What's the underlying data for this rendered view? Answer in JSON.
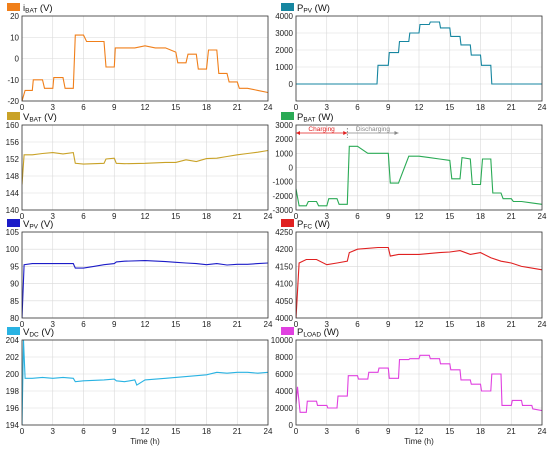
{
  "chart_data": [
    {
      "type": "line",
      "label_main": "i",
      "label_sub": "BAT",
      "unit": "(V)",
      "color": "#f07f1a",
      "ylim": [
        -20,
        20
      ],
      "yticks": [
        -20,
        -10,
        0,
        10,
        20
      ],
      "xlim": [
        0,
        24
      ],
      "xticks": [
        0,
        3,
        6,
        9,
        12,
        15,
        18,
        21,
        24
      ],
      "xlabel": "",
      "grid": true,
      "x": [
        0,
        0.3,
        1,
        1.1,
        2,
        2.2,
        3,
        3.1,
        4,
        4.2,
        5,
        5.2,
        6,
        6.3,
        7,
        8,
        8.2,
        9,
        9.1,
        10,
        11,
        12,
        13,
        14,
        15,
        15.2,
        16,
        16.2,
        17,
        17.2,
        18,
        18.2,
        19,
        19.2,
        20,
        20.2,
        21,
        21.2,
        22,
        23,
        24
      ],
      "y": [
        -20,
        -15,
        -15,
        -10,
        -10,
        -14,
        -14,
        -9,
        -9,
        -14,
        -14,
        11,
        11,
        8,
        8,
        8,
        -4,
        -4,
        5,
        5,
        5,
        6,
        5,
        5,
        3,
        -2,
        -2,
        2,
        2,
        -5,
        -5,
        4,
        4,
        -7,
        -7,
        -11,
        -11,
        -14,
        -14,
        -15,
        -16
      ]
    },
    {
      "type": "line",
      "label_main": "P",
      "label_sub": "PV",
      "unit": "(W)",
      "color": "#1686a0",
      "ylim": [
        -1000,
        4000
      ],
      "yticks": [
        0,
        1000,
        2000,
        3000,
        4000
      ],
      "xlim": [
        0,
        24
      ],
      "xticks": [
        0,
        3,
        6,
        9,
        12,
        15,
        18,
        21,
        24
      ],
      "xlabel": "",
      "grid": true,
      "x": [
        0,
        6,
        7.9,
        8,
        9,
        9.1,
        10,
        10.1,
        11,
        11.1,
        12,
        12.1,
        13,
        13.1,
        14,
        14.1,
        15,
        15.1,
        16,
        16.1,
        17,
        17.1,
        18,
        18.1,
        19,
        19.1,
        24
      ],
      "y": [
        0,
        0,
        0,
        1100,
        1100,
        1850,
        1850,
        2500,
        2500,
        3000,
        3000,
        3500,
        3500,
        3650,
        3650,
        3300,
        3300,
        2800,
        2800,
        2300,
        2300,
        1700,
        1700,
        1100,
        1100,
        0,
        0
      ]
    },
    {
      "type": "line",
      "label_main": "V",
      "label_sub": "BAT",
      "unit": "(V)",
      "color": "#c9a227",
      "ylim": [
        140,
        160
      ],
      "yticks": [
        140,
        144,
        148,
        152,
        156,
        160
      ],
      "xlim": [
        0,
        24
      ],
      "xticks": [
        0,
        3,
        6,
        9,
        12,
        15,
        18,
        21,
        24
      ],
      "xlabel": "",
      "grid": true,
      "x": [
        0,
        0.2,
        1,
        2,
        3,
        4,
        5,
        5.2,
        6,
        8,
        8.2,
        9,
        9.2,
        10,
        12,
        14,
        15,
        16,
        17,
        18,
        19,
        20,
        21,
        22,
        23,
        24
      ],
      "y": [
        146,
        153,
        153,
        153.3,
        153.5,
        153.2,
        153.5,
        151,
        150.8,
        151,
        152,
        152.2,
        151,
        150.9,
        151,
        151.2,
        151.2,
        151.8,
        151.4,
        152.1,
        152.2,
        152.6,
        153,
        153.3,
        153.6,
        154
      ]
    },
    {
      "type": "line",
      "label_main": "P",
      "label_sub": "BAT",
      "unit": "(W)",
      "color": "#2aaa55",
      "ylim": [
        -3000,
        3000
      ],
      "yticks": [
        -3000,
        -2000,
        -1000,
        0,
        1000,
        2000,
        3000
      ],
      "xlim": [
        0,
        24
      ],
      "xticks": [
        0,
        3,
        6,
        9,
        12,
        15,
        18,
        21,
        24
      ],
      "xlabel": "",
      "grid": true,
      "x": [
        0,
        0.3,
        1,
        1.2,
        2,
        2.2,
        3,
        3.2,
        4,
        4.2,
        5,
        5.2,
        6,
        7,
        8,
        8.2,
        9,
        9.2,
        10,
        11,
        12,
        13,
        14,
        15,
        15.2,
        16,
        16.2,
        17,
        17.2,
        18,
        18.2,
        19,
        19.2,
        20,
        20.2,
        21,
        21.2,
        22,
        23,
        24
      ],
      "y": [
        -1500,
        -2700,
        -2700,
        -2400,
        -2400,
        -2700,
        -2700,
        -2200,
        -2200,
        -2600,
        -2600,
        1500,
        1500,
        1000,
        1000,
        1000,
        1000,
        -1100,
        -1100,
        800,
        800,
        700,
        600,
        500,
        -800,
        -800,
        700,
        600,
        -1200,
        -1200,
        600,
        600,
        -1800,
        -1800,
        -2200,
        -2200,
        -2400,
        -2400,
        -2500,
        -2600
      ]
    },
    {
      "type": "line",
      "label_main": "V",
      "label_sub": "PV",
      "unit": "(V)",
      "color": "#1c1cc8",
      "ylim": [
        80,
        105
      ],
      "yticks": [
        80,
        85,
        90,
        95,
        100,
        105
      ],
      "xlim": [
        0,
        24
      ],
      "xticks": [
        0,
        3,
        6,
        9,
        12,
        15,
        18,
        21,
        24
      ],
      "xlabel": "",
      "grid": true,
      "x": [
        0,
        0.2,
        1,
        2,
        3,
        4,
        5,
        5.2,
        6,
        7,
        8,
        9,
        9.2,
        10,
        12,
        14,
        15,
        16,
        17,
        18,
        19,
        20,
        21,
        22,
        23,
        24
      ],
      "y": [
        80,
        95.5,
        95.8,
        95.8,
        95.8,
        95.8,
        95.8,
        94.5,
        94.5,
        95,
        95.5,
        95.8,
        96.3,
        96.5,
        96.7,
        96.4,
        96.2,
        96,
        95.8,
        95.5,
        95.8,
        95.4,
        95.6,
        95.6,
        95.8,
        96
      ]
    },
    {
      "type": "line",
      "label_main": "P",
      "label_sub": "FC",
      "unit": "(W)",
      "color": "#e02020",
      "ylim": [
        4000,
        4250
      ],
      "yticks": [
        4000,
        4050,
        4100,
        4150,
        4200,
        4250
      ],
      "xlim": [
        0,
        24
      ],
      "xticks": [
        0,
        3,
        6,
        9,
        12,
        15,
        18,
        21,
        24
      ],
      "xlabel": "",
      "grid": true,
      "x": [
        0,
        0.3,
        1,
        2,
        3,
        4,
        5,
        5.2,
        6,
        8,
        9,
        9.2,
        10,
        12,
        14,
        15,
        16,
        17,
        18,
        19,
        20,
        21,
        22,
        23,
        24
      ],
      "y": [
        4000,
        4160,
        4170,
        4170,
        4155,
        4160,
        4165,
        4190,
        4200,
        4205,
        4205,
        4180,
        4185,
        4185,
        4190,
        4192,
        4196,
        4185,
        4190,
        4175,
        4165,
        4160,
        4150,
        4145,
        4140
      ]
    },
    {
      "type": "line",
      "label_main": "V",
      "label_sub": "DC",
      "unit": "(V)",
      "color": "#29b3e3",
      "ylim": [
        194,
        204
      ],
      "yticks": [
        194,
        196,
        198,
        200,
        202,
        204
      ],
      "xlim": [
        0,
        24
      ],
      "xticks": [
        0,
        3,
        6,
        9,
        12,
        15,
        18,
        21,
        24
      ],
      "xlabel": "Time (h)",
      "grid": true,
      "x": [
        0,
        0.15,
        0.3,
        1,
        2,
        3,
        4,
        5,
        5.2,
        6,
        8,
        9,
        9.2,
        10,
        11,
        11.2,
        12,
        14,
        16,
        18,
        19,
        20,
        21,
        22,
        23,
        24
      ],
      "y": [
        194,
        204,
        199.5,
        199.5,
        199.6,
        199.5,
        199.6,
        199.5,
        199.1,
        199.2,
        199.3,
        199.4,
        199.2,
        199.1,
        199.3,
        198.7,
        199.3,
        199.5,
        199.7,
        199.9,
        200.2,
        200.1,
        200.2,
        200.2,
        200.1,
        200.2
      ]
    },
    {
      "type": "line",
      "label_main": "P",
      "label_sub": "LOAD",
      "unit": "(W)",
      "color": "#e040e0",
      "ylim": [
        0,
        10000
      ],
      "yticks": [
        0,
        2000,
        4000,
        6000,
        8000,
        10000
      ],
      "xlim": [
        0,
        24
      ],
      "xticks": [
        0,
        3,
        6,
        9,
        12,
        15,
        18,
        21,
        24
      ],
      "xlabel": "Time (h)",
      "grid": true,
      "x": [
        0,
        0.15,
        0.4,
        1,
        1.1,
        2,
        2.1,
        3,
        3.1,
        4,
        4.1,
        5,
        5.1,
        6,
        6.1,
        7,
        7.1,
        8,
        8.1,
        9,
        9.1,
        10,
        10.1,
        11,
        11.1,
        12,
        12.1,
        13,
        13.1,
        14,
        14.1,
        15,
        15.1,
        16,
        16.1,
        17,
        17.1,
        18,
        18.1,
        19,
        19.1,
        20,
        20.1,
        21,
        21.1,
        22,
        22.1,
        23,
        23.1,
        24
      ],
      "y": [
        2500,
        4500,
        1500,
        1500,
        2800,
        2800,
        2300,
        2300,
        2000,
        2000,
        3400,
        3400,
        5800,
        5800,
        5400,
        5400,
        6200,
        6200,
        6700,
        6700,
        5500,
        5500,
        7700,
        7700,
        7800,
        7800,
        8200,
        8200,
        7800,
        7800,
        7200,
        7200,
        6500,
        6500,
        5300,
        5300,
        4800,
        4800,
        4000,
        4000,
        6000,
        6000,
        2300,
        2300,
        2900,
        2900,
        2300,
        2300,
        1900,
        1700
      ]
    }
  ],
  "annotations": {
    "charging": "Charging",
    "discharging": "Discharging",
    "charging_color": "#e02020",
    "discharging_color": "#888888"
  }
}
